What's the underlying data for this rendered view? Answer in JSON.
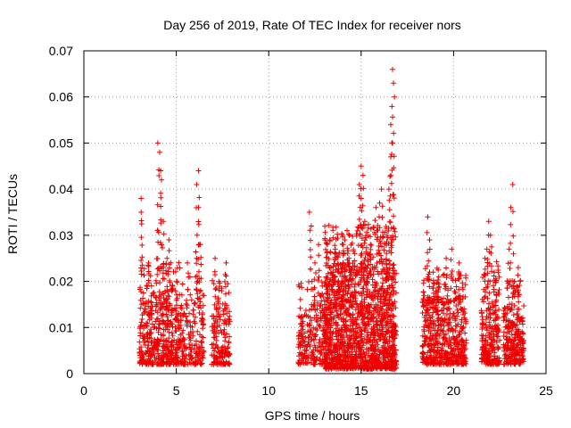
{
  "chart_data": {
    "type": "scatter",
    "title": "Day 256 of 2019, Rate Of TEC Index for receiver nors",
    "xlabel": "GPS time / hours",
    "ylabel": "ROTI / TECUs",
    "xlim": [
      0,
      25
    ],
    "ylim": [
      0,
      0.07
    ],
    "x_ticks": [
      0,
      5,
      10,
      15,
      20,
      25
    ],
    "y_ticks": [
      0,
      0.01,
      0.02,
      0.03,
      0.04,
      0.05,
      0.06,
      0.07
    ],
    "x_tick_labels": [
      "0",
      "5",
      "10",
      "15",
      "20",
      "25"
    ],
    "y_tick_labels": [
      "0",
      "0.01",
      "0.02",
      "0.03",
      "0.04",
      "0.05",
      "0.06",
      "0.07"
    ],
    "grid": true,
    "marker": "+",
    "color": "#ee0000",
    "clusters": [
      {
        "x_range": [
          3.0,
          5.2
        ],
        "base": [
          0.002,
          0.018
        ],
        "density": 420,
        "peaks": [
          [
            3.1,
            0.038
          ],
          [
            3.1,
            0.035
          ],
          [
            4.0,
            0.05
          ],
          [
            4.1,
            0.048
          ],
          [
            4.15,
            0.044
          ],
          [
            4.2,
            0.042
          ],
          [
            4.3,
            0.033
          ],
          [
            4.6,
            0.029
          ],
          [
            4.5,
            0.025
          ],
          [
            3.5,
            0.024
          ],
          [
            4.0,
            0.031
          ],
          [
            4.8,
            0.019
          ]
        ]
      },
      {
        "x_range": [
          5.2,
          6.5
        ],
        "base": [
          0.002,
          0.016
        ],
        "density": 170,
        "peaks": [
          [
            6.2,
            0.044
          ],
          [
            6.1,
            0.041
          ],
          [
            6.2,
            0.036
          ],
          [
            6.3,
            0.028
          ],
          [
            5.6,
            0.024
          ],
          [
            6.1,
            0.025
          ]
        ]
      },
      {
        "x_range": [
          6.9,
          7.9
        ],
        "base": [
          0.002,
          0.015
        ],
        "density": 150,
        "peaks": [
          [
            7.1,
            0.025
          ],
          [
            7.7,
            0.024
          ],
          [
            7.3,
            0.02
          ]
        ]
      },
      {
        "x_range": [
          11.6,
          13.2
        ],
        "base": [
          0.002,
          0.015
        ],
        "density": 200,
        "peaks": [
          [
            12.2,
            0.035
          ],
          [
            12.3,
            0.032
          ],
          [
            12.7,
            0.028
          ],
          [
            12.5,
            0.024
          ],
          [
            12.9,
            0.019
          ]
        ]
      },
      {
        "x_range": [
          13.0,
          16.9
        ],
        "base": [
          0.001,
          0.024
        ],
        "density": 1400,
        "peaks": [
          [
            16.7,
            0.066
          ],
          [
            16.75,
            0.063
          ],
          [
            16.8,
            0.06
          ],
          [
            16.6,
            0.054
          ],
          [
            16.7,
            0.05
          ],
          [
            16.6,
            0.047
          ],
          [
            16.5,
            0.04
          ],
          [
            15.0,
            0.045
          ],
          [
            15.1,
            0.043
          ],
          [
            14.9,
            0.041
          ],
          [
            15.0,
            0.038
          ],
          [
            16.1,
            0.04
          ],
          [
            16.0,
            0.037
          ],
          [
            15.2,
            0.033
          ],
          [
            15.8,
            0.036
          ],
          [
            14.0,
            0.03
          ],
          [
            16.4,
            0.03
          ],
          [
            13.3,
            0.029
          ],
          [
            13.6,
            0.027
          ],
          [
            14.3,
            0.024
          ],
          [
            15.5,
            0.028
          ]
        ]
      },
      {
        "x_range": [
          18.3,
          20.7
        ],
        "base": [
          0.002,
          0.017
        ],
        "density": 500,
        "peaks": [
          [
            18.6,
            0.034
          ],
          [
            18.7,
            0.029
          ],
          [
            19.6,
            0.025
          ],
          [
            19.9,
            0.027
          ],
          [
            20.3,
            0.024
          ],
          [
            19.2,
            0.021
          ],
          [
            18.9,
            0.022
          ]
        ]
      },
      {
        "x_range": [
          21.5,
          22.5
        ],
        "base": [
          0.002,
          0.018
        ],
        "density": 220,
        "peaks": [
          [
            21.9,
            0.033
          ],
          [
            22.0,
            0.03
          ],
          [
            21.8,
            0.027
          ],
          [
            21.7,
            0.025
          ],
          [
            22.2,
            0.022
          ]
        ]
      },
      {
        "x_range": [
          22.7,
          23.8
        ],
        "base": [
          0.002,
          0.015
        ],
        "density": 230,
        "peaks": [
          [
            23.2,
            0.041
          ],
          [
            23.1,
            0.036
          ],
          [
            23.0,
            0.027
          ],
          [
            23.5,
            0.023
          ],
          [
            23.3,
            0.02
          ]
        ]
      }
    ]
  }
}
